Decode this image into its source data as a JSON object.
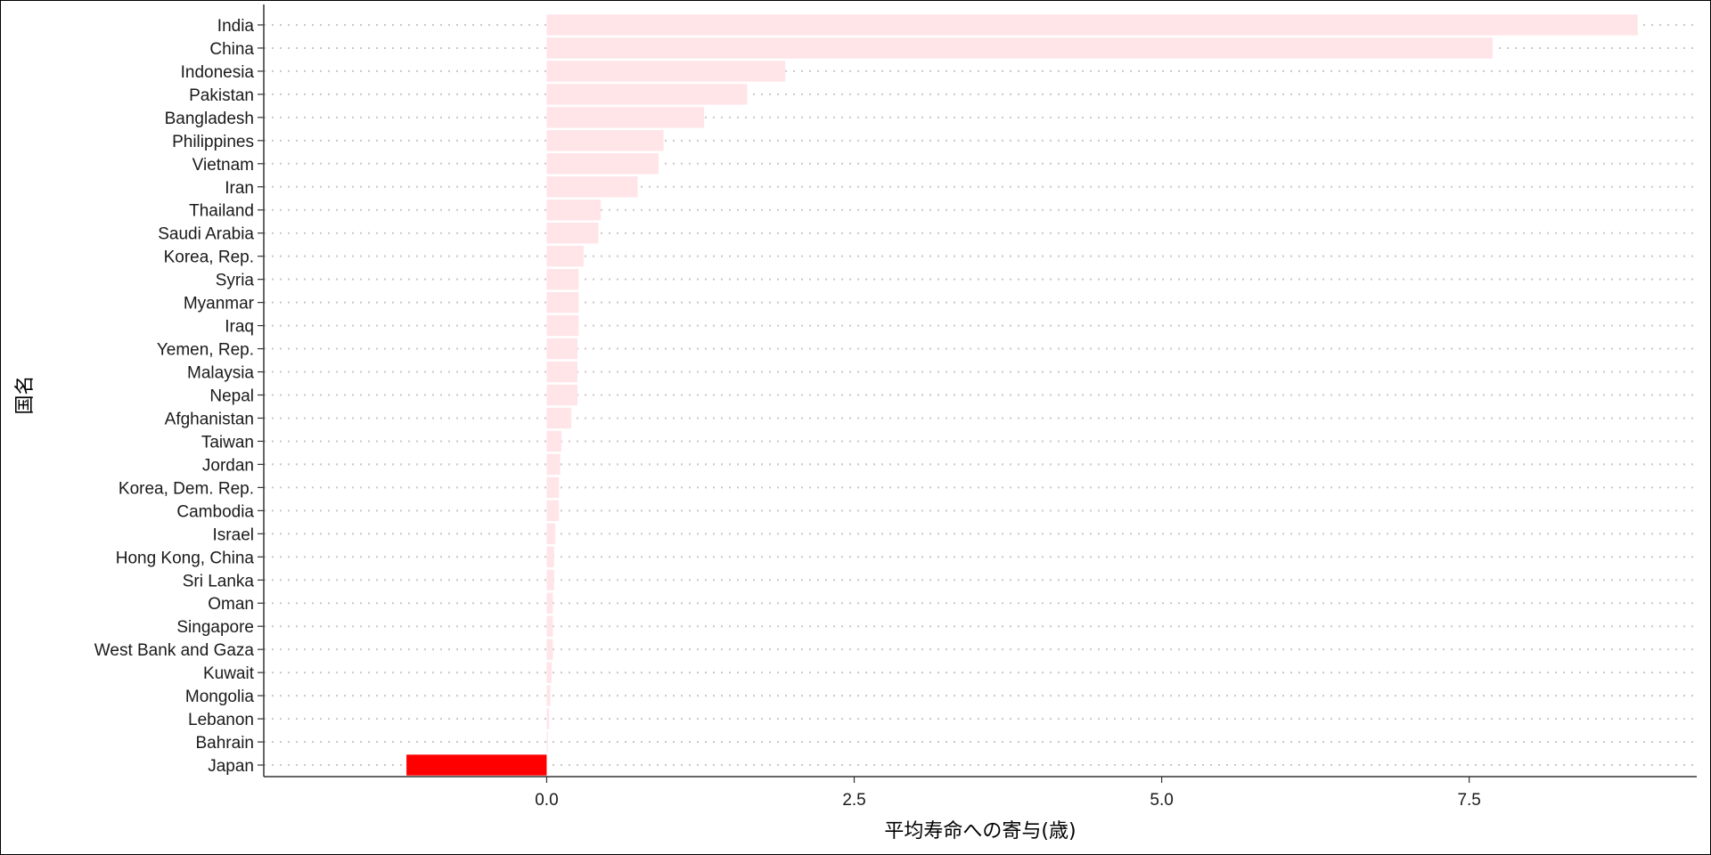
{
  "chart_data": {
    "type": "bar",
    "orientation": "horizontal",
    "xlabel": "平均寿命への寄与(歳)",
    "ylabel": "国名",
    "xlim": [
      -2.3,
      9.35
    ],
    "x_ticks": [
      0.0,
      2.5,
      5.0,
      7.5
    ],
    "x_tick_labels": [
      "0.0",
      "2.5",
      "5.0",
      "7.5"
    ],
    "grid": "dotted horizontal",
    "categories": [
      "India",
      "China",
      "Indonesia",
      "Pakistan",
      "Bangladesh",
      "Philippines",
      "Vietnam",
      "Iran",
      "Thailand",
      "Saudi Arabia",
      "Korea, Rep.",
      "Syria",
      "Myanmar",
      "Iraq",
      "Yemen, Rep.",
      "Malaysia",
      "Nepal",
      "Afghanistan",
      "Taiwan",
      "Jordan",
      "Korea, Dem. Rep.",
      "Cambodia",
      "Israel",
      "Hong Kong, China",
      "Sri Lanka",
      "Oman",
      "Singapore",
      "West Bank and Gaza",
      "Kuwait",
      "Mongolia",
      "Lebanon",
      "Bahrain",
      "Japan"
    ],
    "values": [
      8.87,
      7.69,
      1.94,
      1.63,
      1.28,
      0.95,
      0.91,
      0.74,
      0.44,
      0.42,
      0.3,
      0.26,
      0.26,
      0.26,
      0.25,
      0.25,
      0.25,
      0.2,
      0.12,
      0.11,
      0.1,
      0.1,
      0.07,
      0.06,
      0.06,
      0.05,
      0.05,
      0.05,
      0.04,
      0.03,
      0.02,
      0.01,
      -1.14
    ],
    "highlight": "Japan",
    "colors": {
      "highlight": "#ff0000",
      "others": "#ffe4e8",
      "grid": "#c8c8c8",
      "axis": "#333333"
    }
  }
}
